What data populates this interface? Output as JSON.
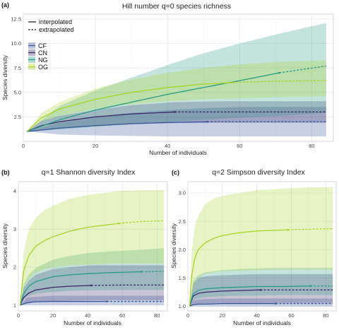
{
  "chart_data": [
    {
      "type": "line",
      "panel_label": "(a)",
      "title": "Hill number q=0 species richness",
      "xlabel": "Number of individuals",
      "ylabel": "Species diversity",
      "xlim": [
        0,
        86
      ],
      "ylim": [
        0,
        13
      ],
      "xticks": [
        0,
        20,
        40,
        60,
        80
      ],
      "xtick_labels": [
        "0",
        "20",
        "40",
        "60",
        "80"
      ],
      "yticks": [
        2.5,
        5.0,
        7.5,
        10.0,
        12.5
      ],
      "ytick_labels": [
        "2.5",
        "5.0",
        "7.5",
        "10.0",
        "12.5"
      ],
      "grid": true,
      "line_legend": [
        "interpolated",
        "extrapolated"
      ],
      "legend_placement": "top-left",
      "series": [
        {
          "name": "CF",
          "color": "#3b5a9a",
          "observed_x": 51,
          "x_max": 84,
          "x": [
            1,
            10,
            20,
            30,
            40,
            51,
            60,
            70,
            84
          ],
          "y": [
            1,
            1.35,
            1.6,
            1.8,
            1.93,
            2.0,
            2.0,
            2.0,
            2.0
          ],
          "lower": [
            1,
            0.7,
            0.6,
            0.55,
            0.5,
            0.5,
            0.5,
            0.5,
            0.5
          ],
          "upper": [
            1,
            1.9,
            2.5,
            2.9,
            3.2,
            3.4,
            3.5,
            3.5,
            3.5
          ]
        },
        {
          "name": "CN",
          "color": "#3d2a6b",
          "observed_x": 42,
          "x_max": 84,
          "x": [
            1,
            5,
            10,
            20,
            30,
            42,
            55,
            70,
            84
          ],
          "y": [
            1,
            1.6,
            2.0,
            2.5,
            2.8,
            3.0,
            3.0,
            3.0,
            3.0
          ],
          "lower": [
            1,
            1.1,
            1.3,
            1.6,
            1.75,
            1.85,
            1.9,
            1.9,
            1.9
          ],
          "upper": [
            1,
            2.1,
            2.6,
            3.2,
            3.7,
            4.0,
            4.1,
            4.1,
            4.1
          ]
        },
        {
          "name": "NG",
          "color": "#2a9a84",
          "observed_x": 71,
          "x_max": 84,
          "x": [
            1,
            10,
            20,
            30,
            40,
            50,
            60,
            71,
            84
          ],
          "y": [
            1,
            2.2,
            3.2,
            4.0,
            4.8,
            5.5,
            6.2,
            7.0,
            7.7
          ],
          "lower": [
            1,
            1.2,
            1.5,
            1.75,
            2.0,
            2.2,
            2.4,
            2.6,
            2.9
          ],
          "upper": [
            1,
            3.6,
            5.2,
            6.5,
            7.8,
            9.0,
            10.0,
            11.0,
            12.1
          ]
        },
        {
          "name": "OG",
          "color": "#a8d42a",
          "observed_x": 58,
          "x_max": 84,
          "x": [
            1,
            5,
            10,
            20,
            30,
            40,
            50,
            58,
            70,
            84
          ],
          "y": [
            1,
            2.4,
            3.3,
            4.3,
            5.0,
            5.5,
            5.85,
            6.0,
            6.15,
            6.2
          ],
          "lower": [
            1,
            2.0,
            2.6,
            3.3,
            3.8,
            4.1,
            4.3,
            4.4,
            4.5,
            4.6
          ],
          "upper": [
            1,
            2.9,
            4.0,
            5.4,
            6.3,
            7.0,
            7.5,
            7.8,
            8.1,
            8.3
          ]
        }
      ]
    },
    {
      "type": "line",
      "panel_label": "(b)",
      "title": "q=1 Shannon diversity Index",
      "xlabel": "Number of individuals",
      "ylabel": "Species diversity",
      "xlim": [
        0,
        86
      ],
      "ylim": [
        0.85,
        4.25
      ],
      "xticks": [
        0,
        20,
        40,
        60,
        80
      ],
      "xtick_labels": [
        "0",
        "20",
        "40",
        "60",
        "80"
      ],
      "yticks": [
        1,
        2,
        3,
        4
      ],
      "ytick_labels": [
        "1",
        "2",
        "3",
        "4"
      ],
      "grid": true,
      "series": [
        {
          "name": "CF",
          "color": "#3b5a9a",
          "observed_x": 51,
          "x_max": 84,
          "x": [
            1,
            5,
            10,
            20,
            30,
            40,
            51,
            65,
            84
          ],
          "y": [
            1,
            1.07,
            1.09,
            1.1,
            1.1,
            1.1,
            1.1,
            1.1,
            1.1
          ],
          "lower": [
            1,
            1.0,
            1.0,
            1.0,
            1.0,
            1.0,
            1.0,
            1.0,
            1.0
          ],
          "upper": [
            1,
            1.2,
            1.22,
            1.25,
            1.25,
            1.25,
            1.25,
            1.25,
            1.25
          ]
        },
        {
          "name": "CN",
          "color": "#3d2a6b",
          "observed_x": 42,
          "x_max": 84,
          "x": [
            1,
            3,
            6,
            10,
            20,
            30,
            42,
            60,
            84
          ],
          "y": [
            1,
            1.2,
            1.32,
            1.4,
            1.47,
            1.5,
            1.52,
            1.53,
            1.53
          ],
          "lower": [
            1,
            1.02,
            1.05,
            1.08,
            1.1,
            1.12,
            1.13,
            1.13,
            1.13
          ],
          "upper": [
            1,
            1.45,
            1.65,
            1.8,
            1.95,
            2.0,
            2.05,
            2.05,
            2.05
          ]
        },
        {
          "name": "NG",
          "color": "#2a9a84",
          "observed_x": 71,
          "x_max": 84,
          "x": [
            1,
            3,
            6,
            10,
            20,
            30,
            40,
            55,
            71,
            84
          ],
          "y": [
            1,
            1.3,
            1.5,
            1.62,
            1.75,
            1.8,
            1.83,
            1.86,
            1.88,
            1.89
          ],
          "lower": [
            1,
            1.15,
            1.25,
            1.3,
            1.35,
            1.38,
            1.39,
            1.4,
            1.4,
            1.4
          ],
          "upper": [
            1,
            1.55,
            1.8,
            1.98,
            2.2,
            2.3,
            2.37,
            2.42,
            2.46,
            2.5
          ]
        },
        {
          "name": "OG",
          "color": "#a8d42a",
          "observed_x": 58,
          "x_max": 84,
          "x": [
            1,
            3,
            6,
            10,
            15,
            20,
            30,
            40,
            58,
            70,
            84
          ],
          "y": [
            1,
            1.9,
            2.3,
            2.55,
            2.7,
            2.8,
            2.95,
            3.05,
            3.15,
            3.2,
            3.22
          ],
          "lower": [
            1,
            1.45,
            1.7,
            1.85,
            1.95,
            2.0,
            2.05,
            2.07,
            2.1,
            2.1,
            2.1
          ],
          "upper": [
            1,
            2.4,
            3.0,
            3.3,
            3.5,
            3.62,
            3.8,
            3.9,
            4.0,
            4.02,
            4.03
          ]
        }
      ]
    },
    {
      "type": "line",
      "panel_label": "(c)",
      "title": "q=2 Simpson diversity Index",
      "xlabel": "Number of individuals",
      "ylabel": "Species diversity",
      "xlim": [
        0,
        86
      ],
      "ylim": [
        0.92,
        3.2
      ],
      "xticks": [
        0,
        20,
        40,
        60,
        80
      ],
      "xtick_labels": [
        "0",
        "20",
        "40",
        "60",
        "80"
      ],
      "yticks": [
        1.0,
        1.5,
        2.0,
        2.5,
        3.0
      ],
      "ytick_labels": [
        "1.0",
        "1.5",
        "2.0",
        "2.5",
        "3.0"
      ],
      "grid": true,
      "series": [
        {
          "name": "CF",
          "color": "#3b5a9a",
          "observed_x": 51,
          "x_max": 84,
          "x": [
            1,
            3,
            6,
            10,
            20,
            30,
            40,
            51,
            65,
            84
          ],
          "y": [
            1,
            1.03,
            1.04,
            1.04,
            1.05,
            1.05,
            1.05,
            1.05,
            1.05,
            1.05
          ],
          "lower": [
            1,
            1.0,
            1.0,
            1.0,
            1.0,
            1.0,
            1.0,
            1.0,
            1.0,
            1.0
          ],
          "upper": [
            1,
            1.1,
            1.12,
            1.13,
            1.14,
            1.14,
            1.14,
            1.14,
            1.14,
            1.14
          ]
        },
        {
          "name": "CN",
          "color": "#3d2a6b",
          "observed_x": 42,
          "x_max": 84,
          "x": [
            1,
            3,
            6,
            10,
            20,
            30,
            42,
            60,
            84
          ],
          "y": [
            1,
            1.18,
            1.23,
            1.25,
            1.27,
            1.28,
            1.29,
            1.29,
            1.29
          ],
          "lower": [
            1,
            1.02,
            1.04,
            1.05,
            1.06,
            1.06,
            1.06,
            1.06,
            1.06
          ],
          "upper": [
            1,
            1.4,
            1.5,
            1.53,
            1.55,
            1.56,
            1.57,
            1.57,
            1.57
          ]
        },
        {
          "name": "NG",
          "color": "#2a9a84",
          "observed_x": 71,
          "x_max": 84,
          "x": [
            1,
            3,
            6,
            10,
            20,
            30,
            40,
            55,
            71,
            84
          ],
          "y": [
            1,
            1.22,
            1.28,
            1.31,
            1.33,
            1.34,
            1.35,
            1.35,
            1.36,
            1.36
          ],
          "lower": [
            1,
            1.1,
            1.14,
            1.16,
            1.18,
            1.19,
            1.19,
            1.2,
            1.2,
            1.2
          ],
          "upper": [
            1,
            1.45,
            1.55,
            1.6,
            1.64,
            1.66,
            1.67,
            1.68,
            1.68,
            1.68
          ]
        },
        {
          "name": "OG",
          "color": "#a8d42a",
          "observed_x": 58,
          "x_max": 84,
          "x": [
            1,
            2,
            4,
            6,
            10,
            15,
            20,
            30,
            40,
            58,
            70,
            84
          ],
          "y": [
            1,
            1.5,
            1.85,
            2.0,
            2.12,
            2.2,
            2.25,
            2.3,
            2.33,
            2.35,
            2.36,
            2.37
          ],
          "lower": [
            1,
            1.2,
            1.4,
            1.5,
            1.58,
            1.6,
            1.62,
            1.63,
            1.64,
            1.65,
            1.65,
            1.65
          ],
          "upper": [
            1,
            1.9,
            2.4,
            2.6,
            2.8,
            2.9,
            2.95,
            3.0,
            3.05,
            3.08,
            3.1,
            3.1
          ]
        }
      ]
    }
  ]
}
